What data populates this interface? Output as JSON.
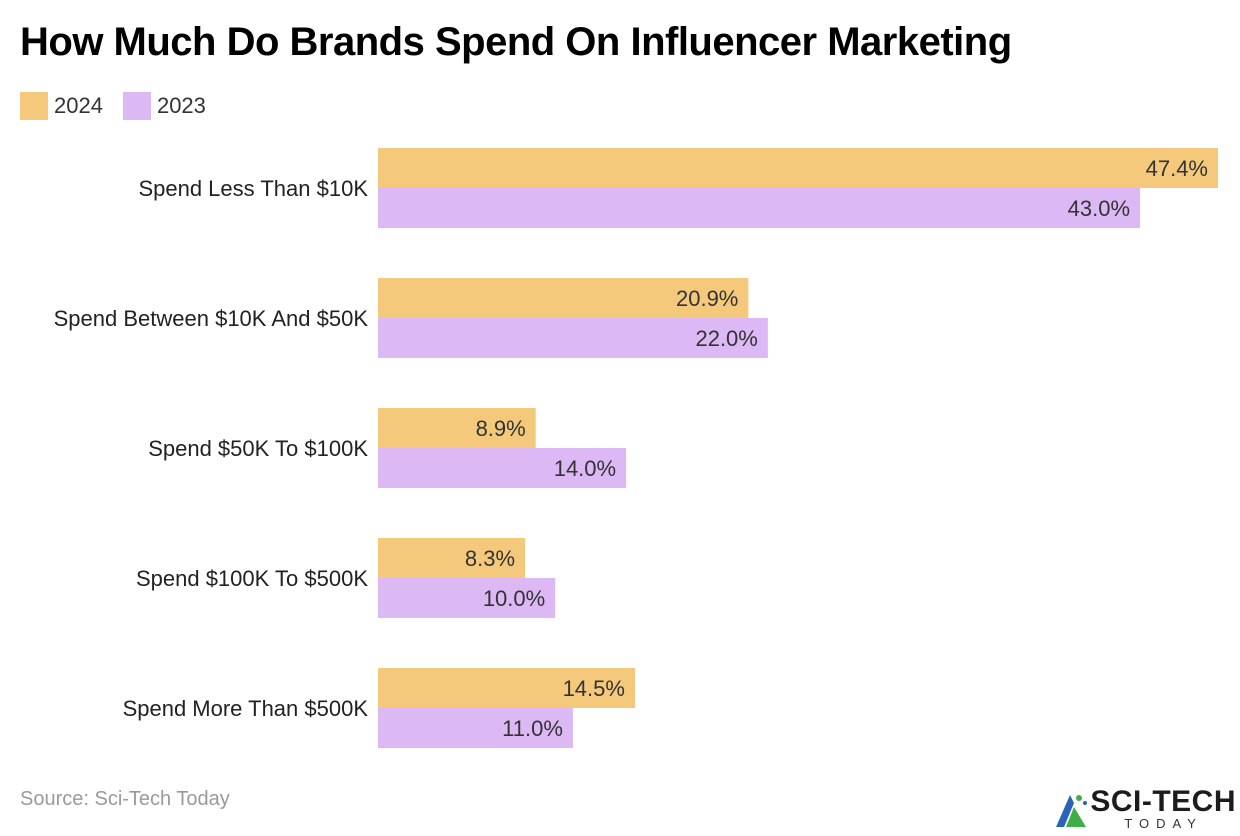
{
  "colors": {
    "series_2024": "#f5c97b",
    "series_2023": "#dcb8f5",
    "label_text": "#333333"
  },
  "chart_data": {
    "type": "bar",
    "orientation": "horizontal",
    "title": "How Much Do Brands Spend On Influencer Marketing",
    "categories": [
      "Spend Less Than $10K",
      "Spend Between $10K And $50K",
      "Spend $50K To $100K",
      "Spend $100K To $500K",
      "Spend More Than $500K"
    ],
    "series": [
      {
        "name": "2024",
        "values": [
          47.4,
          20.9,
          8.9,
          8.3,
          14.5
        ],
        "labels": [
          "47.4%",
          "20.9%",
          "8.9%",
          "8.3%",
          "14.5%"
        ]
      },
      {
        "name": "2023",
        "values": [
          43.0,
          22.0,
          14.0,
          10.0,
          11.0
        ],
        "labels": [
          "43.0%",
          "22.0%",
          "14.0%",
          "10.0%",
          "11.0%"
        ]
      }
    ],
    "xlim": [
      0,
      47.4
    ],
    "grid": false,
    "legend": "top-left"
  },
  "source": "Source: Sci-Tech Today",
  "logo": {
    "main": "SCI-TECH",
    "sub": "TODAY"
  }
}
